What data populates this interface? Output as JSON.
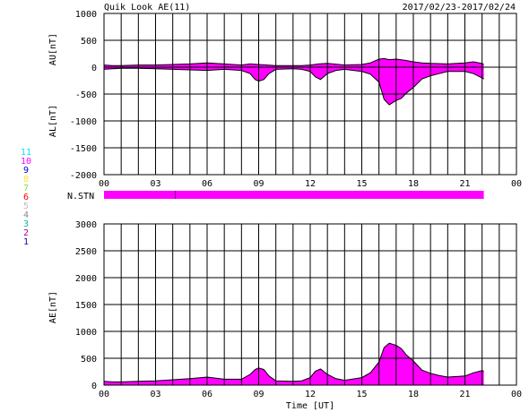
{
  "header": {
    "title": "Quik Look AE(11)",
    "date_range": "2017/02/23-2017/02/24"
  },
  "station_legend": [
    {
      "label": "11",
      "color": "#00e5ff"
    },
    {
      "label": "10",
      "color": "#ff00ff"
    },
    {
      "label": "9",
      "color": "#0000cc"
    },
    {
      "label": "8",
      "color": "#ffe135"
    },
    {
      "label": "7",
      "color": "#88dd44"
    },
    {
      "label": "6",
      "color": "#ff0000"
    },
    {
      "label": "5",
      "color": "#bbbbbb"
    },
    {
      "label": "4",
      "color": "#888888"
    },
    {
      "label": "3",
      "color": "#00bbaa"
    },
    {
      "label": "2",
      "color": "#aa0088"
    },
    {
      "label": "1",
      "color": "#2200aa"
    }
  ],
  "colors": {
    "fill": "#ff00ff",
    "line": "#000000",
    "grid": "#000000",
    "nstn_bar": "#ff00ff"
  },
  "chart_data": [
    {
      "type": "area",
      "ylabel_top": "AU[nT]",
      "ylabel_bottom": "AL[nT]",
      "xlim": [
        0,
        24
      ],
      "ylim": [
        -2000,
        1000
      ],
      "yticks": [
        1000,
        500,
        0,
        -500,
        -1000,
        -1500,
        -2000
      ],
      "xticks": [
        "00",
        "03",
        "06",
        "09",
        "12",
        "15",
        "18",
        "21",
        "00"
      ],
      "grid": true,
      "data_end_hour": 22.1,
      "au": {
        "x": [
          0,
          0.5,
          1,
          2,
          3,
          4,
          5,
          6,
          7,
          8,
          8.5,
          9,
          9.5,
          10,
          11,
          11.5,
          12,
          12.5,
          13,
          14,
          15,
          15.5,
          16,
          16.3,
          16.6,
          17,
          17.5,
          18,
          18.5,
          19,
          20,
          21,
          21.5,
          22,
          22.1
        ],
        "y": [
          40,
          30,
          30,
          40,
          40,
          50,
          60,
          80,
          60,
          40,
          60,
          50,
          40,
          30,
          30,
          30,
          40,
          60,
          70,
          40,
          50,
          80,
          150,
          160,
          140,
          150,
          130,
          100,
          80,
          70,
          60,
          80,
          100,
          70,
          50
        ]
      },
      "al": {
        "x": [
          0,
          0.5,
          1,
          2,
          3,
          4,
          5,
          6,
          7,
          8,
          8.5,
          8.8,
          9,
          9.3,
          9.6,
          10,
          11,
          11.5,
          12,
          12.3,
          12.6,
          13,
          13.5,
          14,
          15,
          15.5,
          16,
          16.3,
          16.6,
          17,
          17.3,
          17.6,
          18,
          18.5,
          19,
          19.5,
          20,
          21,
          21.5,
          22,
          22.1
        ],
        "y": [
          -40,
          -30,
          -20,
          -20,
          -30,
          -40,
          -50,
          -60,
          -40,
          -60,
          -120,
          -230,
          -260,
          -230,
          -120,
          -40,
          -30,
          -40,
          -80,
          -180,
          -230,
          -120,
          -60,
          -40,
          -80,
          -130,
          -280,
          -600,
          -700,
          -620,
          -580,
          -480,
          -380,
          -220,
          -160,
          -120,
          -80,
          -80,
          -120,
          -200,
          -220
        ]
      }
    },
    {
      "type": "area",
      "ylabel": "AE[nT]",
      "xlabel": "Time [UT]",
      "xlim": [
        0,
        24
      ],
      "ylim": [
        0,
        3000
      ],
      "yticks": [
        3000,
        2500,
        2000,
        1500,
        1000,
        500,
        0
      ],
      "xticks": [
        "00",
        "03",
        "06",
        "09",
        "12",
        "15",
        "18",
        "21",
        "00"
      ],
      "grid": true,
      "data_end_hour": 22.1,
      "ae": {
        "x": [
          0,
          0.5,
          1,
          2,
          3,
          4,
          5,
          6,
          7,
          8,
          8.5,
          8.8,
          9,
          9.3,
          9.6,
          10,
          11,
          11.5,
          12,
          12.3,
          12.6,
          13,
          13.5,
          14,
          15,
          15.5,
          16,
          16.3,
          16.6,
          17,
          17.3,
          17.6,
          18,
          18.5,
          19,
          19.5,
          20,
          21,
          21.5,
          22,
          22.1
        ],
        "y": [
          70,
          60,
          60,
          70,
          80,
          100,
          120,
          150,
          110,
          110,
          200,
          290,
          320,
          290,
          170,
          80,
          70,
          80,
          140,
          260,
          300,
          200,
          120,
          90,
          140,
          230,
          430,
          700,
          780,
          740,
          680,
          560,
          450,
          280,
          220,
          180,
          150,
          170,
          230,
          270,
          260
        ]
      }
    }
  ],
  "nstn": {
    "label": "N.STN",
    "x_end": 22.1,
    "marker_hour": 4.15
  }
}
